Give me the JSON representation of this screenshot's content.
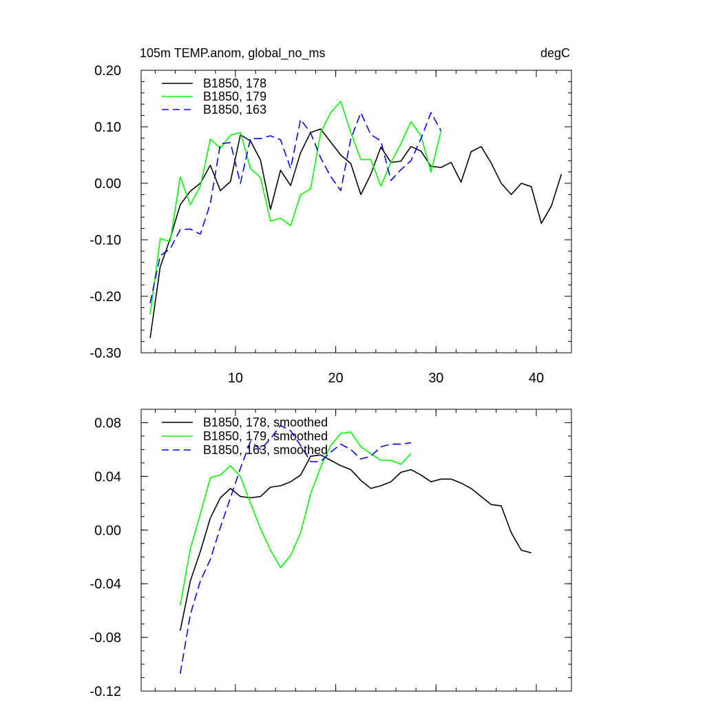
{
  "chart_data": [
    {
      "type": "line",
      "title": "105m TEMP.anom, global_no_ms",
      "units": "degC",
      "xlim": [
        0.6,
        43.5
      ],
      "ylim": [
        -0.3,
        0.2
      ],
      "xticks": [
        10,
        20,
        30,
        40
      ],
      "xtick_labels": [
        "10",
        "20",
        "30",
        "40"
      ],
      "yticks": [
        0.2,
        0.1,
        0.0,
        -0.1,
        -0.2,
        -0.3
      ],
      "ytick_labels": [
        "0.20",
        "0.10",
        "0.00",
        "-0.10",
        "-0.20",
        "-0.30"
      ],
      "legend_position": "top-left",
      "series": [
        {
          "name": "B1850, 178",
          "color": "#000000",
          "dash": "solid",
          "x": [
            1.5,
            2.5,
            3.5,
            4.5,
            5.5,
            6.5,
            7.5,
            8.5,
            9.5,
            10.5,
            11.5,
            12.5,
            13.5,
            14.5,
            15.5,
            16.5,
            17.5,
            18.5,
            19.5,
            20.5,
            21.5,
            22.5,
            23.5,
            24.5,
            25.5,
            26.5,
            27.5,
            28.5,
            29.5,
            30.5,
            31.5,
            32.5,
            33.5,
            34.5,
            35.5,
            36.5,
            37.5,
            38.5,
            39.5,
            40.5,
            41.5,
            42.5
          ],
          "y": [
            -0.274,
            -0.148,
            -0.098,
            -0.038,
            -0.014,
            0.0,
            0.032,
            -0.013,
            0.003,
            0.086,
            0.075,
            0.041,
            -0.046,
            0.023,
            -0.004,
            0.054,
            0.09,
            0.096,
            0.073,
            0.05,
            0.035,
            -0.02,
            0.016,
            0.064,
            0.037,
            0.039,
            0.065,
            0.057,
            0.03,
            0.028,
            0.037,
            0.002,
            0.056,
            0.065,
            0.036,
            0.0,
            -0.02,
            0.0,
            -0.006,
            -0.071,
            -0.04,
            0.016
          ]
        },
        {
          "name": "B1850, 179",
          "color": "#00ff00",
          "dash": "solid",
          "x": [
            1.5,
            2.5,
            3.5,
            4.5,
            5.5,
            6.5,
            7.5,
            8.5,
            9.5,
            10.5,
            11.5,
            12.5,
            13.5,
            14.5,
            15.5,
            16.5,
            17.5,
            18.5,
            19.5,
            20.5,
            21.5,
            22.5,
            23.5,
            24.5,
            25.5,
            26.5,
            27.5,
            28.5,
            29.5,
            30.5
          ],
          "y": [
            -0.232,
            -0.098,
            -0.103,
            0.011,
            -0.038,
            -0.005,
            0.078,
            0.062,
            0.085,
            0.09,
            0.026,
            0.01,
            -0.067,
            -0.062,
            -0.075,
            -0.02,
            -0.01,
            0.09,
            0.125,
            0.145,
            0.09,
            0.042,
            0.042,
            -0.005,
            0.037,
            0.07,
            0.109,
            0.084,
            0.02,
            0.093
          ]
        },
        {
          "name": "B1850, 163",
          "color": "#0000ff",
          "dash": "dashed",
          "x": [
            1.5,
            2.5,
            3.5,
            4.5,
            5.5,
            6.5,
            7.5,
            8.5,
            9.5,
            10.5,
            11.5,
            12.5,
            13.5,
            14.5,
            15.5,
            16.5,
            17.5,
            18.5,
            19.5,
            20.5,
            21.5,
            22.5,
            23.5,
            24.5,
            25.5,
            26.5,
            27.5,
            28.5,
            29.5,
            30.5
          ],
          "y": [
            -0.212,
            -0.128,
            -0.116,
            -0.082,
            -0.081,
            -0.09,
            -0.036,
            0.07,
            0.072,
            0.0,
            0.079,
            0.079,
            0.084,
            0.077,
            0.026,
            0.113,
            0.089,
            0.045,
            0.012,
            -0.013,
            0.078,
            0.125,
            0.086,
            0.075,
            0.005,
            0.024,
            0.04,
            0.079,
            0.125,
            0.093
          ]
        }
      ]
    },
    {
      "type": "line",
      "xlim": [
        0.6,
        43.5
      ],
      "ylim": [
        -0.12,
        0.09
      ],
      "xticks": [
        10,
        20,
        30,
        40
      ],
      "yticks": [
        0.08,
        0.04,
        0.0,
        -0.04,
        -0.08,
        -0.12
      ],
      "ytick_labels": [
        "0.08",
        "0.04",
        "0.00",
        "-0.04",
        "-0.08",
        "-0.12"
      ],
      "legend_position": "top-left",
      "series": [
        {
          "name": "B1850, 178, smoothed",
          "color": "#000000",
          "dash": "solid",
          "x": [
            4.5,
            5.5,
            6.5,
            7.5,
            8.5,
            9.5,
            10.5,
            11.5,
            12.5,
            13.5,
            14.5,
            15.5,
            16.5,
            17.5,
            18.5,
            19.5,
            20.5,
            21.5,
            22.5,
            23.5,
            24.5,
            25.5,
            26.5,
            27.5,
            28.5,
            29.5,
            30.5,
            31.5,
            32.5,
            33.5,
            34.5,
            35.5,
            36.5,
            37.5,
            38.5,
            39.5
          ],
          "y": [
            -0.075,
            -0.038,
            -0.016,
            0.009,
            0.024,
            0.031,
            0.025,
            0.024,
            0.025,
            0.032,
            0.033,
            0.036,
            0.041,
            0.055,
            0.056,
            0.052,
            0.048,
            0.045,
            0.037,
            0.031,
            0.033,
            0.036,
            0.043,
            0.045,
            0.041,
            0.036,
            0.038,
            0.038,
            0.035,
            0.031,
            0.025,
            0.019,
            0.018,
            -0.002,
            -0.015,
            -0.017
          ]
        },
        {
          "name": "B1850, 179, smoothed",
          "color": "#00ff00",
          "dash": "solid",
          "x": [
            4.5,
            5.5,
            6.5,
            7.5,
            8.5,
            9.5,
            10.5,
            11.5,
            12.5,
            13.5,
            14.5,
            15.5,
            16.5,
            17.5,
            18.5,
            19.5,
            20.5,
            21.5,
            22.5,
            23.5,
            24.5,
            25.5,
            26.5,
            27.5
          ],
          "y": [
            -0.056,
            -0.014,
            0.012,
            0.039,
            0.041,
            0.048,
            0.04,
            0.02,
            0.001,
            -0.015,
            -0.028,
            -0.019,
            -0.002,
            0.027,
            0.047,
            0.063,
            0.072,
            0.073,
            0.062,
            0.057,
            0.052,
            0.052,
            0.049,
            0.057
          ]
        },
        {
          "name": "B1850, 163, smoothed",
          "color": "#0000ff",
          "dash": "dashed",
          "x": [
            4.5,
            5.5,
            6.5,
            7.5,
            8.5,
            9.5,
            10.5,
            11.5,
            12.5,
            13.5,
            14.5,
            15.5,
            16.5,
            17.5,
            18.5,
            19.5,
            20.5,
            21.5,
            22.5,
            23.5,
            24.5,
            25.5,
            26.5,
            27.5
          ],
          "y": [
            -0.107,
            -0.063,
            -0.038,
            -0.022,
            0.002,
            0.024,
            0.046,
            0.066,
            0.06,
            0.068,
            0.078,
            0.074,
            0.063,
            0.051,
            0.051,
            0.058,
            0.064,
            0.06,
            0.053,
            0.055,
            0.062,
            0.064,
            0.064,
            0.065
          ]
        }
      ]
    }
  ]
}
